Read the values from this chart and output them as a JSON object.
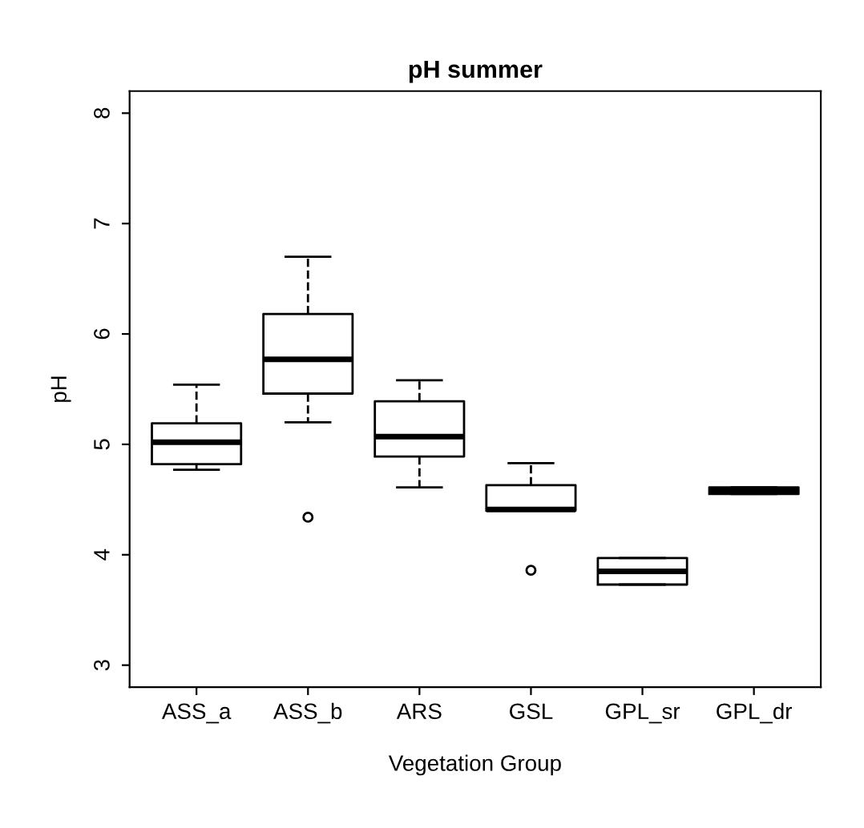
{
  "chart_data": {
    "type": "box",
    "title": "pH summer",
    "xlabel": "Vegetation Group",
    "ylabel": "pH",
    "categories": [
      "ASS_a",
      "ASS_b",
      "ARS",
      "GSL",
      "GPL_sr",
      "GPL_dr"
    ],
    "boxes": [
      {
        "low": 4.77,
        "q1": 4.82,
        "median": 5.02,
        "q3": 5.19,
        "high": 5.54
      },
      {
        "low": 5.2,
        "q1": 5.46,
        "median": 5.77,
        "q3": 6.18,
        "high": 6.7,
        "outliers": [
          4.34
        ]
      },
      {
        "low": 4.61,
        "q1": 4.89,
        "median": 5.07,
        "q3": 5.39,
        "high": 5.58
      },
      {
        "low": 4.4,
        "q1": 4.4,
        "median": 4.41,
        "q3": 4.63,
        "high": 4.83,
        "outliers": [
          3.86
        ]
      },
      {
        "low": 3.73,
        "q1": 3.73,
        "median": 3.85,
        "q3": 3.97,
        "high": 3.97
      },
      {
        "low": 4.55,
        "q1": 4.55,
        "median": 4.58,
        "q3": 4.61,
        "high": 4.61
      }
    ],
    "ylim": [
      2.8,
      8.2
    ],
    "yticks": [
      3,
      4,
      5,
      6,
      7,
      8
    ],
    "grid": false
  }
}
